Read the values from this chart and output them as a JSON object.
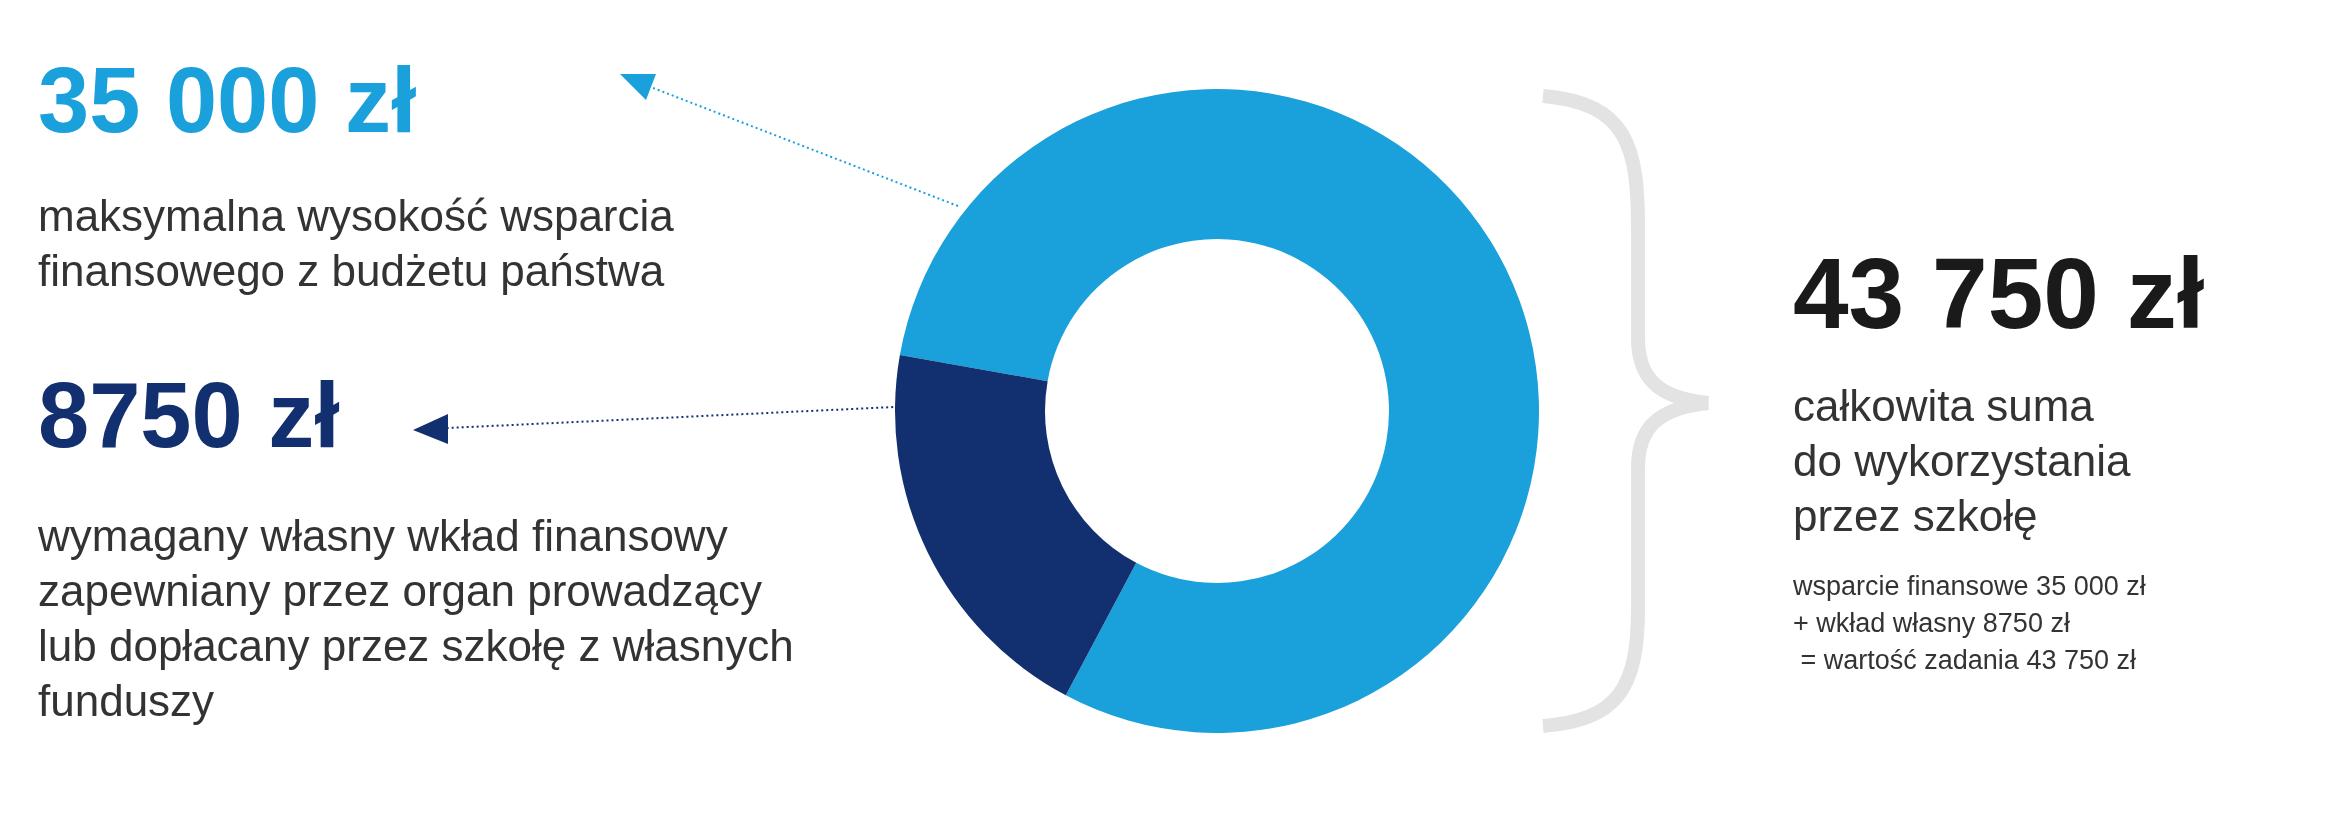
{
  "chart_data": {
    "type": "donut",
    "title": "43 750 zł",
    "categories": [
      "maksymalna wysokość wsparcia\nfinansowego z budżetu państwa",
      "wymagany własny wkład finansowy\nzapewniany przez organ prowadzący\nlub dopłacany przez szkołę z własnych\nfunduszy"
    ],
    "values": [
      35000,
      8750
    ],
    "value_labels": [
      "35 000 zł",
      "8750 zł"
    ],
    "colors": [
      "#1aa0db",
      "#12306f"
    ],
    "annotations": [
      "całkowita suma\ndo wykorzystania\nprzez szkołę",
      "wsparcie finansowe 35 000 zł\n+ wkład własny 8750 zł\n = wartość zadania 43 750 zł"
    ]
  }
}
